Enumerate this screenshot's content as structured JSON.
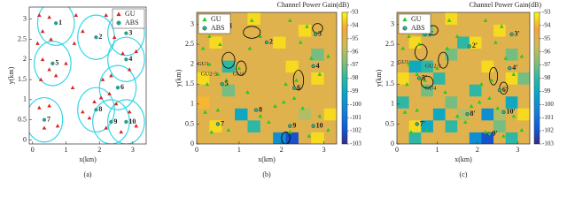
{
  "chart_data": [
    {
      "type": "scatter",
      "caption": "(a)",
      "xlabel": "x(km)",
      "ylabel": "y(km)",
      "xlim": [
        -0.1,
        3.4
      ],
      "ylim": [
        -0.1,
        3.3
      ],
      "xticks": [
        0,
        1,
        2,
        3
      ],
      "yticks": [
        0,
        0.5,
        1,
        1.5,
        2,
        2.5,
        3
      ],
      "coverage_radius": 0.55,
      "coverage_color": "#33d6e6",
      "legend": "upper right",
      "series": [
        {
          "name": "GU",
          "color": "#d62728",
          "marker": "triangle",
          "x": [
            0.2,
            0.5,
            0.3,
            0.15,
            0.55,
            1.3,
            1.5,
            1.25,
            2.2,
            2.6,
            2.45,
            3.1,
            2.7,
            2.9,
            0.3,
            0.5,
            0.7,
            1.0,
            0.25,
            1.2,
            2.1,
            2.35,
            2.3,
            2.05,
            2.5,
            0.2,
            0.5,
            0.35,
            0.75,
            1.5,
            1.7,
            1.85,
            2.2,
            2.65,
            2.9,
            3.1
          ],
          "values": [
            3.1,
            3.05,
            2.7,
            2.4,
            2.5,
            3.1,
            2.7,
            2.4,
            3.1,
            2.95,
            2.55,
            2.2,
            2.15,
            1.75,
            2.0,
            1.75,
            1.6,
            1.9,
            1.5,
            1.3,
            1.5,
            1.6,
            1.15,
            1.05,
            0.9,
            0.8,
            0.85,
            0.3,
            0.35,
            0.7,
            0.55,
            0.95,
            0.3,
            0.2,
            0.7,
            0.35
          ]
        },
        {
          "name": "ABS",
          "color": "#2a9d8f",
          "marker": "circle",
          "labels": [
            "1",
            "2",
            "3",
            "4",
            "5",
            "6",
            "7",
            "8",
            "9",
            "10"
          ],
          "x": [
            0.7,
            1.9,
            2.8,
            2.8,
            0.6,
            2.55,
            0.35,
            1.9,
            2.35,
            2.8
          ],
          "values": [
            2.9,
            2.55,
            2.65,
            2.0,
            1.9,
            1.3,
            0.5,
            0.75,
            0.45,
            0.45
          ]
        }
      ]
    },
    {
      "type": "heatmap",
      "caption": "(b)",
      "xlabel": "x(km)",
      "ylabel": "y(km)",
      "colorbar_label": "Channel Power Gain(dB)",
      "xlim": [
        0,
        3.3
      ],
      "ylim": [
        0,
        3.3
      ],
      "xticks": [
        0,
        1,
        2,
        3
      ],
      "yticks": [
        0,
        0.5,
        1,
        1.5,
        2,
        2.5,
        3
      ],
      "clim": [
        -103,
        -93
      ],
      "cticks": [
        -93,
        -94,
        -95,
        -96,
        -97,
        -98,
        -99,
        -100,
        -101,
        -102,
        -103
      ],
      "colormap": [
        "#352a87",
        "#0f5cdd",
        "#1481d6",
        "#06a4ca",
        "#2eb7a4",
        "#87bf77",
        "#d1bb59",
        "#f5a53a",
        "#f9fb0e"
      ],
      "z": [
        [
          -95,
          -95,
          -95,
          -95,
          -95,
          -95,
          -100,
          -102,
          -95,
          -93.5,
          -95
        ],
        [
          -95,
          -93.5,
          -95,
          -95,
          -98,
          -95,
          -95,
          -95,
          -95,
          -95,
          -95
        ],
        [
          -95,
          -95,
          -95,
          -99,
          -95,
          -95,
          -95,
          -95,
          -96,
          -95,
          -93.5
        ],
        [
          -94,
          -95,
          -95,
          -95,
          -95,
          -95,
          -95,
          -95,
          -95,
          -95,
          -95
        ],
        [
          -95,
          -95,
          -97,
          -95,
          -95,
          -95,
          -95,
          -95,
          -95,
          -95,
          -95
        ],
        [
          -93.5,
          -95,
          -95,
          -95,
          -95,
          -95,
          -95,
          -95,
          -95,
          -93.5,
          -95
        ],
        [
          -95,
          -95,
          -98,
          -95,
          -95,
          -95,
          -95,
          -93.5,
          -95,
          -95,
          -95
        ],
        [
          -95,
          -95,
          -95,
          -95,
          -95,
          -95,
          -95,
          -95,
          -95,
          -97,
          -95
        ],
        [
          -95,
          -93.5,
          -95,
          -95,
          -95,
          -95,
          -93.5,
          -95,
          -95,
          -95,
          -95
        ],
        [
          -95,
          -95,
          -95,
          -95,
          -95,
          -95,
          -95,
          -95,
          -93.5,
          -95,
          -95
        ],
        [
          -95,
          -95,
          -95,
          -95,
          -93.5,
          -95,
          -95,
          -95,
          -95,
          -95,
          -95
        ]
      ],
      "legend": "upper left",
      "annotations": [
        {
          "text": "GU1",
          "x": 0.02,
          "y": 2.0
        },
        {
          "text": "GU2-3",
          "x": 0.1,
          "y": 1.75
        },
        {
          "text": "GU4",
          "x": 0.85,
          "y": 1.75
        }
      ],
      "series": [
        {
          "name": "GU",
          "color": "#22cc22",
          "marker": "triangle",
          "x": [
            0.2,
            0.5,
            0.3,
            0.15,
            0.55,
            1.3,
            1.5,
            1.25,
            2.2,
            2.6,
            2.45,
            3.1,
            2.7,
            2.9,
            0.3,
            0.5,
            0.7,
            1.0,
            0.25,
            1.2,
            2.1,
            2.35,
            2.3,
            2.05,
            2.5,
            0.2,
            0.5,
            0.35,
            0.75,
            1.5,
            1.7,
            1.85,
            2.2,
            2.65,
            2.9,
            3.1
          ],
          "values": [
            3.1,
            3.05,
            2.7,
            2.4,
            2.5,
            3.1,
            2.7,
            2.4,
            3.1,
            2.95,
            2.55,
            2.2,
            2.15,
            1.75,
            2.0,
            1.75,
            1.6,
            1.9,
            1.5,
            1.3,
            1.5,
            1.6,
            1.15,
            1.05,
            0.9,
            0.8,
            0.85,
            0.3,
            0.35,
            0.7,
            0.55,
            0.95,
            0.3,
            0.2,
            0.7,
            0.35
          ]
        },
        {
          "name": "ABS",
          "color": "#1f5f3f",
          "marker": "circle",
          "labels": [
            "1",
            "2",
            "3",
            "4",
            "5",
            "6",
            "7",
            "8",
            "9",
            "10"
          ],
          "x": [
            0.7,
            1.65,
            2.8,
            2.75,
            0.6,
            2.3,
            0.5,
            1.4,
            2.2,
            2.75
          ],
          "values": [
            2.95,
            2.55,
            2.75,
            1.95,
            1.5,
            1.4,
            0.5,
            0.85,
            0.45,
            0.45
          ]
        }
      ]
    },
    {
      "type": "heatmap",
      "caption": "(c)",
      "xlabel": "x(km)",
      "ylabel": "y(km)",
      "colorbar_label": "Channel Power Gain(dB)",
      "xlim": [
        0,
        3.3
      ],
      "ylim": [
        0,
        3.3
      ],
      "xticks": [
        0,
        1,
        2,
        3
      ],
      "yticks": [
        0,
        0.5,
        1,
        1.5,
        2,
        2.5,
        3
      ],
      "clim": [
        -103,
        -93
      ],
      "cticks": [
        -93,
        -94,
        -95,
        -96,
        -97,
        -98,
        -99,
        -100,
        -101,
        -102,
        -103
      ],
      "colormap": [
        "#352a87",
        "#0f5cdd",
        "#1481d6",
        "#06a4ca",
        "#2eb7a4",
        "#87bf77",
        "#d1bb59",
        "#f5a53a",
        "#f9fb0e"
      ],
      "z": [
        [
          -95,
          -98,
          -95,
          -95,
          -95,
          -95,
          -100,
          -102,
          -95,
          -98,
          -95
        ],
        [
          -95,
          -93.5,
          -99,
          -95,
          -98,
          -95,
          -95,
          -95,
          -97,
          -95,
          -95
        ],
        [
          -95,
          -95,
          -95,
          -99,
          -95,
          -96,
          -95,
          -100,
          -96,
          -95,
          -93.5
        ],
        [
          -98,
          -95,
          -95,
          -95,
          -97,
          -95,
          -95,
          -95,
          -95,
          -99,
          -95
        ],
        [
          -95,
          -95,
          -97,
          -95,
          -95,
          -95,
          -98,
          -95,
          -95,
          -95,
          -95
        ],
        [
          -93.5,
          -95,
          -95,
          -98,
          -95,
          -95,
          -95,
          -95,
          -95,
          -93.5,
          -97
        ],
        [
          -95,
          -99,
          -98,
          -95,
          -95,
          -95,
          -95,
          -93.5,
          -95,
          -95,
          -95
        ],
        [
          -95,
          -95,
          -95,
          -95,
          -97,
          -95,
          -95,
          -95,
          -95,
          -97,
          -95
        ],
        [
          -95,
          -93.5,
          -95,
          -95,
          -95,
          -98,
          -93.5,
          -95,
          -95,
          -95,
          -95
        ],
        [
          -95,
          -95,
          -97,
          -95,
          -95,
          -95,
          -95,
          -95,
          -93.5,
          -95,
          -95
        ],
        [
          -95,
          -95,
          -95,
          -95,
          -93.5,
          -95,
          -95,
          -95,
          -95,
          -95,
          -95
        ]
      ],
      "legend": "upper left",
      "annotations": [
        {
          "text": "GU1",
          "x": 0.02,
          "y": 2.05
        },
        {
          "text": "GU2-3",
          "x": 0.7,
          "y": 1.95
        },
        {
          "text": "GU4",
          "x": 0.7,
          "y": 1.4
        }
      ],
      "series": [
        {
          "name": "GU",
          "color": "#22cc22",
          "marker": "triangle",
          "x": [
            0.2,
            0.5,
            0.3,
            0.15,
            0.55,
            1.3,
            1.5,
            1.25,
            2.2,
            2.6,
            2.45,
            3.1,
            2.7,
            2.9,
            0.3,
            0.5,
            0.7,
            1.0,
            0.25,
            1.2,
            2.1,
            2.35,
            2.3,
            2.05,
            2.5,
            0.2,
            0.5,
            0.35,
            0.75,
            1.5,
            1.7,
            1.85,
            2.2,
            2.65,
            2.9,
            3.1
          ],
          "values": [
            3.1,
            3.05,
            2.7,
            2.4,
            2.5,
            3.1,
            2.7,
            2.4,
            3.1,
            2.95,
            2.55,
            2.2,
            2.15,
            1.75,
            2.0,
            1.75,
            1.6,
            1.9,
            1.5,
            1.3,
            1.5,
            1.6,
            1.15,
            1.05,
            0.9,
            0.8,
            0.85,
            0.3,
            0.35,
            0.7,
            0.55,
            0.95,
            0.3,
            0.2,
            0.7,
            0.35
          ]
        },
        {
          "name": "ABS",
          "color": "#1f5f3f",
          "marker": "circle",
          "labels": [
            "1'",
            "2'",
            "3'",
            "4'",
            "5'",
            "6'",
            "7'",
            "8'",
            "9'",
            "10'"
          ],
          "x": [
            0.7,
            1.8,
            2.85,
            2.8,
            0.55,
            2.55,
            0.5,
            1.75,
            2.3,
            2.65
          ],
          "values": [
            2.75,
            2.45,
            2.75,
            1.9,
            1.65,
            1.35,
            0.5,
            0.75,
            0.25,
            0.8
          ]
        }
      ]
    }
  ]
}
